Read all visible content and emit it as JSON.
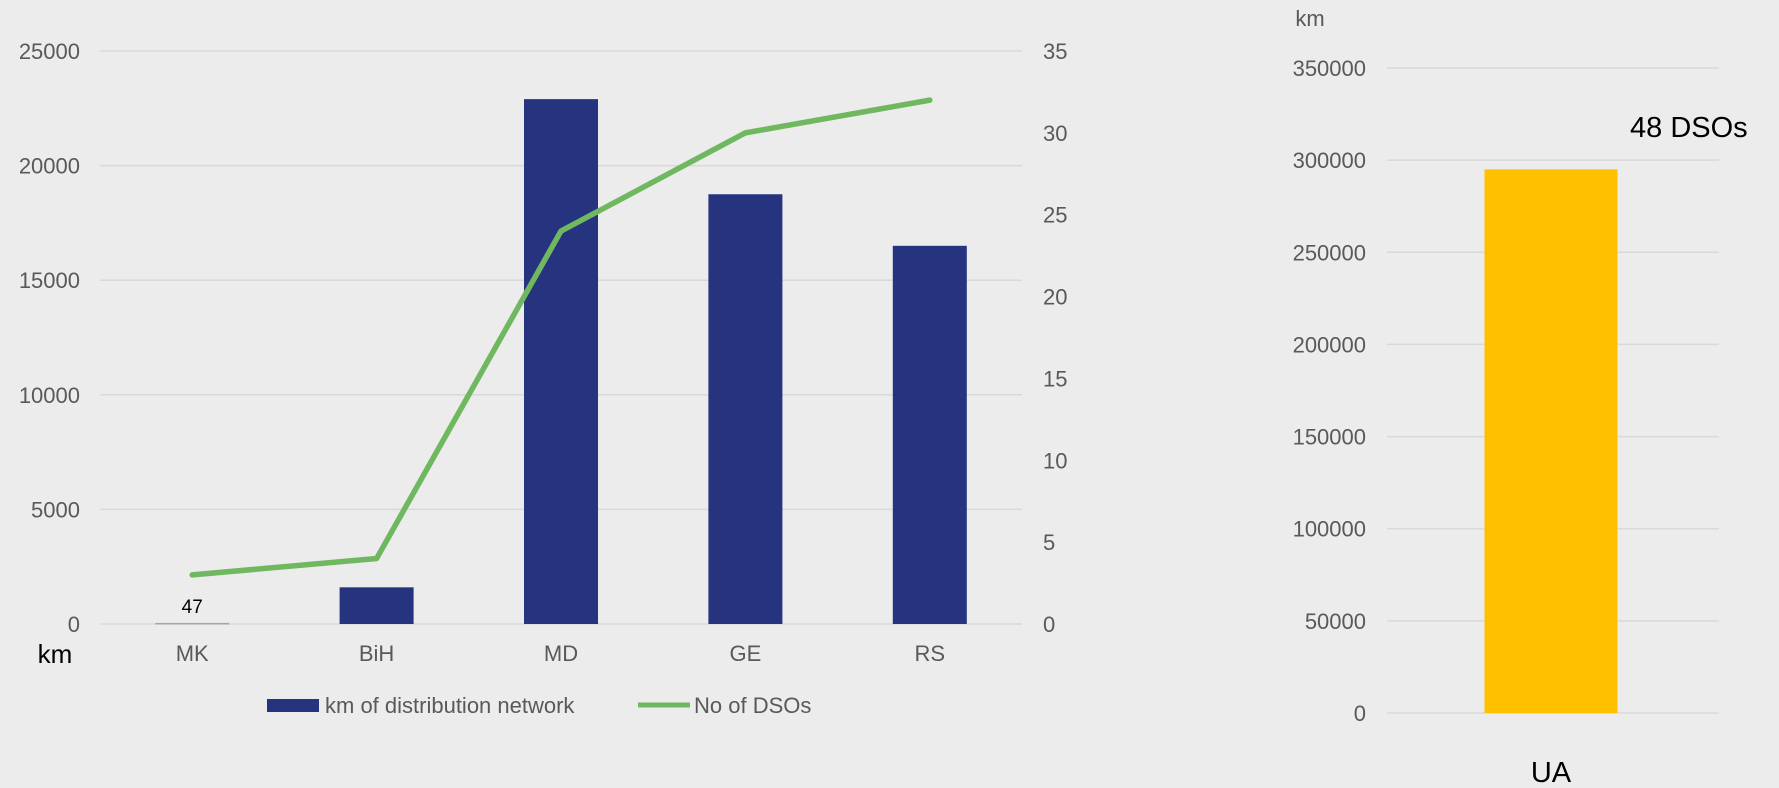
{
  "chart_data": [
    {
      "type": "bar",
      "categories": [
        "MK",
        "BiH",
        "MD",
        "GE",
        "RS"
      ],
      "series": [
        {
          "name": "km of distribution network",
          "type": "bar",
          "axis": "left",
          "color": "#26337e",
          "values": [
            47,
            1600,
            22900,
            18750,
            16500
          ]
        },
        {
          "name": "No of DSOs",
          "type": "line",
          "axis": "right",
          "color": "#70b85f",
          "values": [
            3,
            4,
            24,
            30,
            32
          ]
        }
      ],
      "yticks": [
        "0",
        "5000",
        "10000",
        "15000",
        "20000",
        "25000"
      ],
      "y2ticks": [
        "0",
        "5",
        "10",
        "15",
        "20",
        "25",
        "30",
        "35"
      ],
      "ylim": [
        0,
        25000
      ],
      "y2lim": [
        0,
        35
      ],
      "ylabel": "km",
      "data_labels": [
        {
          "category": "MK",
          "text": "47"
        }
      ],
      "legend": {
        "position": "bottom",
        "items": [
          "km of distribution network",
          "No of DSOs"
        ]
      },
      "grid": true
    },
    {
      "type": "bar",
      "categories": [
        "UA"
      ],
      "series": [
        {
          "name": "",
          "color": "#ffc000",
          "values": [
            295000
          ]
        }
      ],
      "yticks": [
        "0",
        "50000",
        "100000",
        "150000",
        "200000",
        "250000",
        "300000",
        "350000"
      ],
      "ylim": [
        0,
        350000
      ],
      "ylabel": "km",
      "annotation": "48 DSOs",
      "grid": true
    }
  ]
}
